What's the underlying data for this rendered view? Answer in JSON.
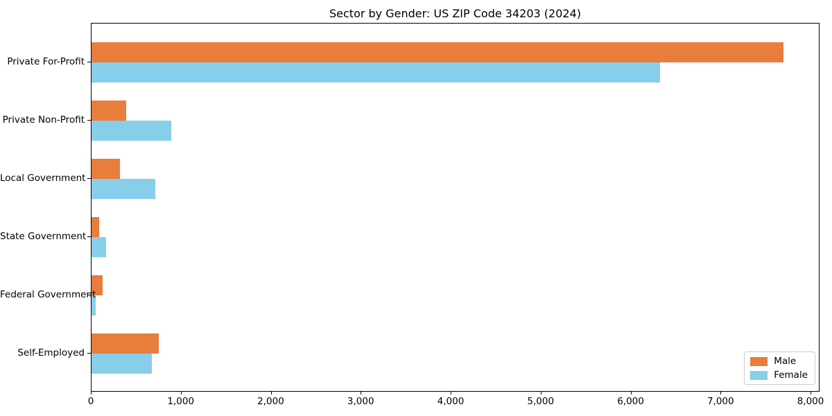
{
  "chart_data": {
    "type": "bar",
    "orientation": "horizontal",
    "title": "Sector by Gender: US ZIP Code 34203 (2024)",
    "categories": [
      "Private For-Profit",
      "Private Non-Profit",
      "Local Government",
      "State Government",
      "Federal Government",
      "Self-Employed"
    ],
    "series": [
      {
        "name": "Male",
        "color": "#e87d3c",
        "values": [
          7710,
          385,
          315,
          85,
          120,
          750
        ]
      },
      {
        "name": "Female",
        "color": "#87ceeb",
        "values": [
          6330,
          890,
          710,
          160,
          45,
          670
        ]
      }
    ],
    "xlabel": "",
    "ylabel": "",
    "xlim": [
      0,
      8100
    ],
    "xticks": [
      0,
      1000,
      2000,
      3000,
      4000,
      5000,
      6000,
      7000,
      8000
    ],
    "xtick_labels": [
      "0",
      "1,000",
      "2,000",
      "3,000",
      "4,000",
      "5,000",
      "6,000",
      "7,000",
      "8,000"
    ],
    "grid": false,
    "legend_position": "lower right"
  }
}
